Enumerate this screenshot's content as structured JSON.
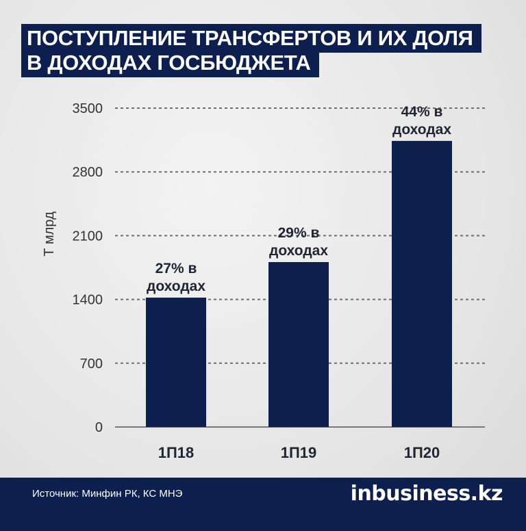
{
  "title_lines": [
    "ПОСТУПЛЕНИЕ ТРАНСФЕРТОВ И ИХ ДОЛЯ",
    "В ДОХОДАХ ГОСБЮДЖЕТА"
  ],
  "footer": {
    "source": "Источник: Минфин РК, КС МНЭ",
    "brand": "inbusiness.kz"
  },
  "colors": {
    "bar": "#0c1f4f",
    "background": "#e9e9e9",
    "grid": "#6e6e6e"
  },
  "chart_data": {
    "type": "bar",
    "categories": [
      "1П18",
      "1П19",
      "1П20"
    ],
    "values": [
      1420,
      1810,
      3140
    ],
    "data_labels": [
      [
        "27% в",
        "доходах"
      ],
      [
        "29% в",
        "доходах"
      ],
      [
        "44% в",
        "доходах"
      ]
    ],
    "ylabel": "Т млрд",
    "ylim": [
      0,
      3500
    ],
    "yticks": [
      0,
      700,
      1400,
      2100,
      2800,
      3500
    ],
    "grid": true
  }
}
